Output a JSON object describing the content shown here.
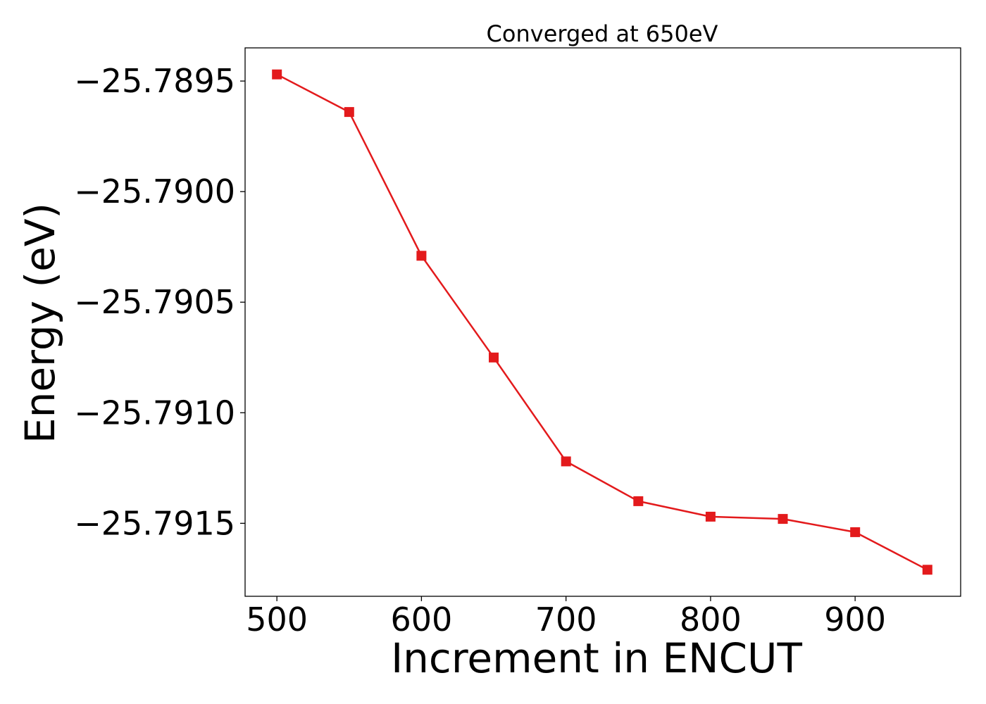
{
  "chart_data": {
    "type": "line",
    "title": "Converged at 650eV",
    "xlabel": "Increment in ENCUT",
    "ylabel": "Energy (eV)",
    "x": [
      500,
      550,
      600,
      650,
      700,
      750,
      800,
      850,
      900,
      950
    ],
    "series": [
      {
        "values": [
          -25.78947,
          -25.78964,
          -25.79029,
          -25.79075,
          -25.79122,
          -25.7914,
          -25.79147,
          -25.79148,
          -25.79154,
          -25.79171
        ],
        "color": "#e31a1c",
        "marker": "square"
      }
    ],
    "xticks": [
      500,
      600,
      700,
      800,
      900
    ],
    "xtick_labels": [
      "500",
      "600",
      "700",
      "800",
      "900"
    ],
    "yticks": [
      -25.7895,
      -25.79,
      -25.7905,
      -25.791,
      -25.7915
    ],
    "ytick_labels": [
      "−25.7895",
      "−25.7900",
      "−25.7905",
      "−25.7910",
      "−25.7915"
    ],
    "xlim": [
      478,
      973
    ],
    "ylim": [
      -25.79183,
      -25.78935
    ],
    "grid": false,
    "legend": "none"
  }
}
